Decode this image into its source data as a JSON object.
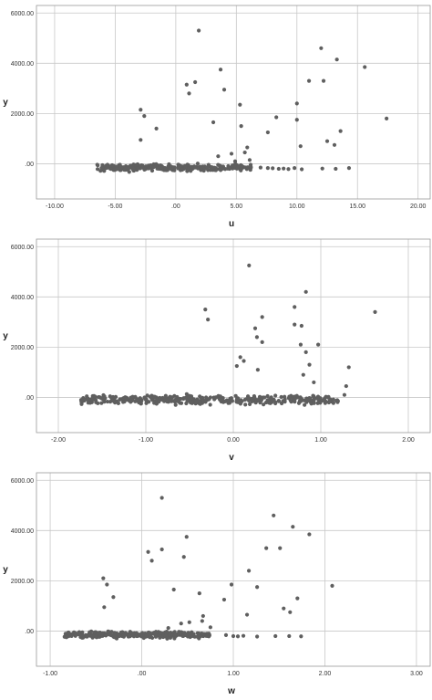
{
  "chart_data": [
    {
      "type": "scatter",
      "xlabel": "u",
      "ylabel": "y",
      "xlim": [
        -11.5,
        21.0
      ],
      "ylim": [
        -1400,
        6300
      ],
      "xticks": [
        -10,
        -5,
        0,
        5,
        10,
        15,
        20
      ],
      "yticks": [
        0,
        2000,
        4000,
        6000
      ],
      "xtick_labels": [
        "-10.00",
        "-5.00",
        ".00",
        "5.00",
        "10.00",
        "15.00",
        "20.00"
      ],
      "ytick_labels": [
        ".00",
        "2000.00",
        "4000.00",
        "6000.00"
      ],
      "grid": true,
      "point_color": "#5f5f5f",
      "outliers": [
        [
          1.9,
          5300
        ],
        [
          12.0,
          4600
        ],
        [
          13.3,
          4150
        ],
        [
          15.6,
          3850
        ],
        [
          3.7,
          3750
        ],
        [
          11.0,
          3300
        ],
        [
          12.2,
          3300
        ],
        [
          1.6,
          3250
        ],
        [
          0.9,
          3150
        ],
        [
          1.1,
          2800
        ],
        [
          4.0,
          2950
        ],
        [
          10.0,
          2400
        ],
        [
          5.3,
          2350
        ],
        [
          -2.9,
          2150
        ],
        [
          -2.6,
          1900
        ],
        [
          8.3,
          1850
        ],
        [
          17.4,
          1800
        ],
        [
          10.0,
          1750
        ],
        [
          3.1,
          1650
        ],
        [
          5.4,
          1500
        ],
        [
          -1.6,
          1400
        ],
        [
          13.6,
          1300
        ],
        [
          7.6,
          1250
        ],
        [
          -2.9,
          950
        ],
        [
          12.5,
          900
        ],
        [
          13.1,
          750
        ],
        [
          10.3,
          700
        ],
        [
          5.9,
          650
        ],
        [
          5.7,
          450
        ],
        [
          4.6,
          400
        ],
        [
          3.5,
          300
        ],
        [
          6.1,
          150
        ],
        [
          4.9,
          100
        ]
      ],
      "cluster": {
        "x_range": [
          -6.5,
          6.2
        ],
        "y_center": -150,
        "y_spread": 130,
        "count": 300
      },
      "tail_points": [
        [
          7.0,
          -150
        ],
        [
          7.6,
          -170
        ],
        [
          8.0,
          -180
        ],
        [
          8.5,
          -200
        ],
        [
          8.9,
          -190
        ],
        [
          9.3,
          -210
        ],
        [
          9.8,
          -170
        ],
        [
          10.4,
          -220
        ],
        [
          12.1,
          -190
        ],
        [
          13.2,
          -200
        ],
        [
          14.3,
          -170
        ]
      ]
    },
    {
      "type": "scatter",
      "xlabel": "v",
      "ylabel": "y",
      "xlim": [
        -2.25,
        2.25
      ],
      "ylim": [
        -1400,
        6300
      ],
      "xticks": [
        -2,
        -1,
        0,
        1,
        2
      ],
      "yticks": [
        0,
        2000,
        4000,
        6000
      ],
      "xtick_labels": [
        "-2.00",
        "-1.00",
        "0.00",
        "1.00",
        "2.00"
      ],
      "ytick_labels": [
        ".00",
        "2000.00",
        "4000.00",
        "6000.00"
      ],
      "grid": true,
      "point_color": "#5f5f5f",
      "outliers": [
        [
          0.18,
          5250
        ],
        [
          0.83,
          4200
        ],
        [
          -0.32,
          3500
        ],
        [
          1.62,
          3400
        ],
        [
          -0.29,
          3100
        ],
        [
          0.33,
          3200
        ],
        [
          0.7,
          3600
        ],
        [
          0.7,
          2900
        ],
        [
          0.78,
          2850
        ],
        [
          0.25,
          2750
        ],
        [
          0.27,
          2400
        ],
        [
          0.33,
          2200
        ],
        [
          0.77,
          2100
        ],
        [
          0.97,
          2100
        ],
        [
          0.08,
          1600
        ],
        [
          0.12,
          1450
        ],
        [
          0.04,
          1250
        ],
        [
          0.28,
          1100
        ],
        [
          0.83,
          1800
        ],
        [
          1.32,
          1200
        ],
        [
          0.87,
          1300
        ],
        [
          0.8,
          900
        ],
        [
          1.29,
          450
        ],
        [
          1.27,
          100
        ],
        [
          0.92,
          600
        ]
      ],
      "cluster": {
        "x_range": [
          -1.75,
          1.2
        ],
        "y_center": -100,
        "y_spread": 180,
        "count": 380
      },
      "tail_points": []
    },
    {
      "type": "scatter",
      "xlabel": "w",
      "ylabel": "y",
      "xlim": [
        -1.15,
        3.15
      ],
      "ylim": [
        -1400,
        6300
      ],
      "xticks": [
        -1,
        0,
        1,
        2,
        3
      ],
      "yticks": [
        0,
        2000,
        4000,
        6000
      ],
      "xtick_labels": [
        "-1.00",
        ".00",
        "1.00",
        "2.00",
        "3.00"
      ],
      "ytick_labels": [
        ".00",
        "2000.00",
        "4000.00",
        "6000.00"
      ],
      "grid": true,
      "point_color": "#5f5f5f",
      "outliers": [
        [
          0.22,
          5300
        ],
        [
          1.44,
          4600
        ],
        [
          1.65,
          4150
        ],
        [
          1.83,
          3850
        ],
        [
          0.49,
          3750
        ],
        [
          1.36,
          3300
        ],
        [
          1.51,
          3300
        ],
        [
          0.22,
          3250
        ],
        [
          0.07,
          3150
        ],
        [
          0.11,
          2800
        ],
        [
          0.46,
          2950
        ],
        [
          1.17,
          2400
        ],
        [
          -0.42,
          2100
        ],
        [
          -0.38,
          1850
        ],
        [
          0.98,
          1850
        ],
        [
          2.08,
          1800
        ],
        [
          1.26,
          1750
        ],
        [
          0.35,
          1650
        ],
        [
          0.63,
          1500
        ],
        [
          -0.31,
          1350
        ],
        [
          1.7,
          1300
        ],
        [
          0.9,
          1250
        ],
        [
          -0.41,
          950
        ],
        [
          1.55,
          900
        ],
        [
          1.62,
          750
        ],
        [
          1.15,
          650
        ],
        [
          0.67,
          600
        ],
        [
          0.66,
          400
        ],
        [
          0.52,
          350
        ],
        [
          0.43,
          300
        ],
        [
          0.75,
          150
        ],
        [
          0.29,
          120
        ]
      ],
      "cluster": {
        "x_range": [
          -0.85,
          0.75
        ],
        "y_center": -150,
        "y_spread": 120,
        "count": 320
      },
      "tail_points": [
        [
          0.92,
          -160
        ],
        [
          1.0,
          -200
        ],
        [
          1.05,
          -210
        ],
        [
          1.11,
          -190
        ],
        [
          1.26,
          -220
        ],
        [
          1.46,
          -200
        ],
        [
          1.61,
          -200
        ],
        [
          1.74,
          -210
        ]
      ]
    }
  ]
}
